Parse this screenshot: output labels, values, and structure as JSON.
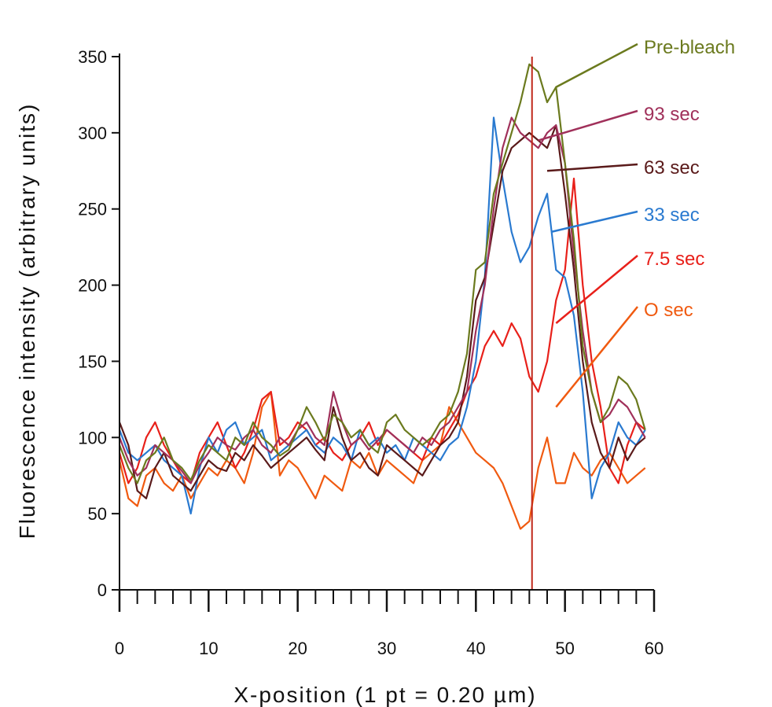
{
  "chart_data": {
    "type": "line",
    "title": "",
    "xlabel": "X-position (1 pt = 0.20 µm)",
    "ylabel": "Fluorescence intensity (arbitrary units)",
    "xlim": [
      0,
      60
    ],
    "ylim": [
      0,
      350
    ],
    "xticks": [
      0,
      10,
      20,
      30,
      40,
      50,
      60
    ],
    "yticks": [
      0,
      50,
      100,
      150,
      200,
      250,
      300,
      350
    ],
    "grid": false,
    "legend": "right, with leader lines",
    "series": [
      {
        "name": "Pre-bleach",
        "color": "#6b7a1e",
        "x": [
          0,
          1,
          2,
          3,
          4,
          5,
          6,
          7,
          8,
          9,
          10,
          11,
          12,
          13,
          14,
          15,
          16,
          17,
          18,
          19,
          20,
          21,
          22,
          23,
          24,
          25,
          26,
          27,
          28,
          29,
          30,
          31,
          32,
          33,
          34,
          35,
          36,
          37,
          38,
          39,
          40,
          41,
          42,
          43,
          44,
          45,
          46,
          47,
          48,
          49,
          50,
          51,
          52,
          53,
          54,
          55,
          56,
          57,
          58,
          59
        ],
        "y": [
          95,
          80,
          70,
          85,
          90,
          100,
          85,
          80,
          72,
          85,
          95,
          90,
          85,
          100,
          95,
          110,
          100,
          95,
          88,
          92,
          105,
          120,
          110,
          98,
          115,
          110,
          100,
          105,
          95,
          90,
          110,
          115,
          105,
          100,
          95,
          100,
          110,
          115,
          130,
          155,
          210,
          215,
          260,
          280,
          300,
          320,
          345,
          340,
          320,
          330,
          280,
          230,
          160,
          130,
          110,
          120,
          140,
          135,
          125,
          105
        ]
      },
      {
        "name": "93 sec",
        "color": "#a0305a",
        "x": [
          0,
          1,
          2,
          3,
          4,
          5,
          6,
          7,
          8,
          9,
          10,
          11,
          12,
          13,
          14,
          15,
          16,
          17,
          18,
          19,
          20,
          21,
          22,
          23,
          24,
          25,
          26,
          27,
          28,
          29,
          30,
          31,
          32,
          33,
          34,
          35,
          36,
          37,
          38,
          39,
          40,
          41,
          42,
          43,
          44,
          45,
          46,
          47,
          48,
          49,
          50,
          51,
          52,
          53,
          54,
          55,
          56,
          57,
          58,
          59
        ],
        "y": [
          100,
          85,
          75,
          80,
          95,
          90,
          85,
          78,
          70,
          82,
          90,
          100,
          95,
          92,
          100,
          105,
          95,
          90,
          100,
          95,
          105,
          110,
          100,
          95,
          130,
          110,
          95,
          100,
          92,
          98,
          105,
          100,
          95,
          90,
          100,
          95,
          105,
          110,
          120,
          130,
          170,
          200,
          250,
          290,
          310,
          300,
          295,
          290,
          300,
          305,
          280,
          220,
          170,
          130,
          110,
          115,
          125,
          120,
          110,
          100
        ]
      },
      {
        "name": "63 sec",
        "color": "#5a1a1a",
        "x": [
          0,
          1,
          2,
          3,
          4,
          5,
          6,
          7,
          8,
          9,
          10,
          11,
          12,
          13,
          14,
          15,
          16,
          17,
          18,
          19,
          20,
          21,
          22,
          23,
          24,
          25,
          26,
          27,
          28,
          29,
          30,
          31,
          32,
          33,
          34,
          35,
          36,
          37,
          38,
          39,
          40,
          41,
          42,
          43,
          44,
          45,
          46,
          47,
          48,
          49,
          50,
          51,
          52,
          53,
          54,
          55,
          56,
          57,
          58,
          59
        ],
        "y": [
          110,
          95,
          65,
          60,
          80,
          90,
          75,
          70,
          65,
          75,
          85,
          80,
          78,
          90,
          85,
          95,
          88,
          80,
          85,
          90,
          95,
          100,
          92,
          85,
          120,
          100,
          85,
          90,
          80,
          75,
          95,
          90,
          85,
          80,
          75,
          85,
          95,
          100,
          110,
          140,
          190,
          205,
          240,
          275,
          290,
          295,
          300,
          295,
          290,
          305,
          260,
          210,
          150,
          110,
          90,
          80,
          100,
          85,
          95,
          100
        ]
      },
      {
        "name": "33 sec",
        "color": "#2a7ad0",
        "x": [
          0,
          1,
          2,
          3,
          4,
          5,
          6,
          7,
          8,
          9,
          10,
          11,
          12,
          13,
          14,
          15,
          16,
          17,
          18,
          19,
          20,
          21,
          22,
          23,
          24,
          25,
          26,
          27,
          28,
          29,
          30,
          31,
          32,
          33,
          34,
          35,
          36,
          37,
          38,
          39,
          40,
          41,
          42,
          43,
          44,
          45,
          46,
          47,
          48,
          49,
          50,
          51,
          52,
          53,
          54,
          55,
          56,
          57,
          58,
          59
        ],
        "y": [
          105,
          90,
          85,
          90,
          95,
          85,
          80,
          75,
          50,
          80,
          100,
          90,
          105,
          110,
          95,
          100,
          105,
          85,
          90,
          95,
          100,
          105,
          95,
          90,
          100,
          95,
          85,
          105,
          95,
          100,
          90,
          95,
          85,
          100,
          95,
          90,
          85,
          95,
          100,
          120,
          150,
          205,
          310,
          270,
          235,
          215,
          225,
          245,
          260,
          210,
          205,
          180,
          130,
          60,
          80,
          90,
          110,
          100,
          95,
          105
        ]
      },
      {
        "name": "7.5 sec",
        "color": "#e8201a",
        "x": [
          0,
          1,
          2,
          3,
          4,
          5,
          6,
          7,
          8,
          9,
          10,
          11,
          12,
          13,
          14,
          15,
          16,
          17,
          18,
          19,
          20,
          21,
          22,
          23,
          24,
          25,
          26,
          27,
          28,
          29,
          30,
          31,
          32,
          33,
          34,
          35,
          36,
          37,
          38,
          39,
          40,
          41,
          42,
          43,
          44,
          45,
          46,
          47,
          48,
          49,
          50,
          51,
          52,
          53,
          54,
          55,
          56,
          57,
          58,
          59
        ],
        "y": [
          90,
          70,
          80,
          100,
          110,
          95,
          85,
          75,
          70,
          90,
          100,
          110,
          95,
          80,
          90,
          105,
          125,
          130,
          95,
          100,
          110,
          105,
          95,
          100,
          90,
          85,
          95,
          100,
          110,
          95,
          105,
          100,
          95,
          90,
          85,
          100,
          95,
          105,
          115,
          130,
          140,
          160,
          170,
          160,
          175,
          165,
          140,
          130,
          150,
          190,
          210,
          270,
          200,
          150,
          120,
          80,
          70,
          95,
          110,
          105
        ]
      },
      {
        "name": "O sec",
        "color": "#f05a10",
        "x": [
          0,
          1,
          2,
          3,
          4,
          5,
          6,
          7,
          8,
          9,
          10,
          11,
          12,
          13,
          14,
          15,
          16,
          17,
          18,
          19,
          20,
          21,
          22,
          23,
          24,
          25,
          26,
          27,
          28,
          29,
          30,
          31,
          32,
          33,
          34,
          35,
          36,
          37,
          38,
          39,
          40,
          41,
          42,
          43,
          44,
          45,
          46,
          47,
          48,
          49,
          50,
          51,
          52,
          53,
          54,
          55,
          56,
          57,
          58,
          59
        ],
        "y": [
          85,
          60,
          55,
          75,
          80,
          70,
          65,
          75,
          60,
          70,
          80,
          75,
          85,
          80,
          70,
          90,
          120,
          130,
          75,
          85,
          80,
          70,
          60,
          75,
          70,
          65,
          85,
          80,
          90,
          75,
          85,
          80,
          75,
          70,
          85,
          90,
          95,
          120,
          110,
          100,
          90,
          85,
          80,
          70,
          55,
          40,
          45,
          80,
          100,
          70,
          70,
          90,
          80,
          75,
          85,
          90,
          80,
          70,
          75,
          80
        ]
      }
    ]
  }
}
